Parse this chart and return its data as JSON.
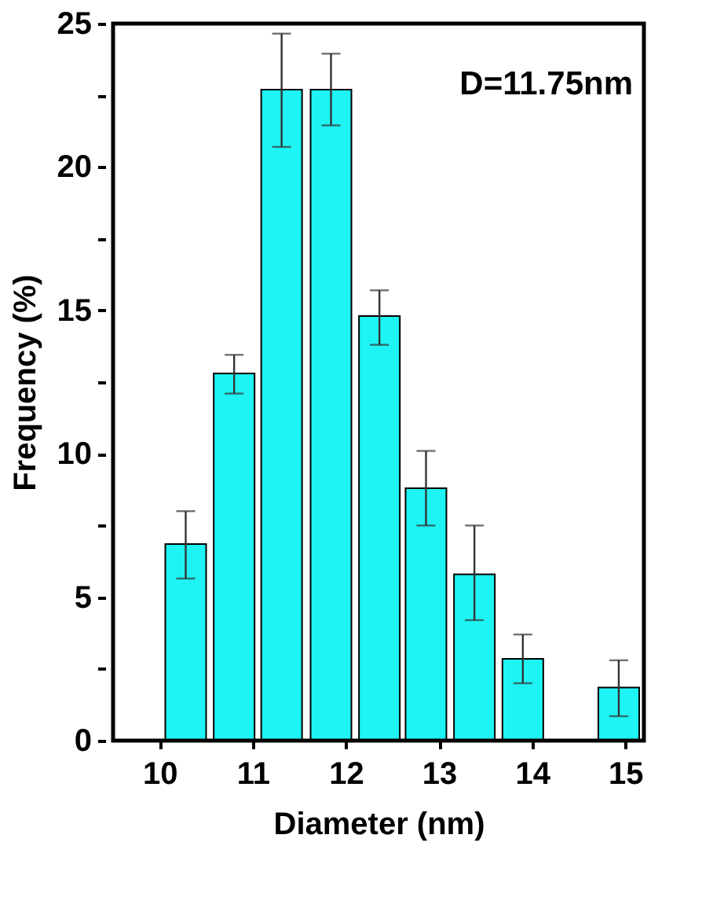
{
  "chart_data": {
    "type": "bar",
    "xlabel": "Diameter (nm)",
    "ylabel": "Frequency (%)",
    "annotations": [
      "D=11.75nm"
    ],
    "x": [
      10.28,
      10.8,
      11.31,
      11.84,
      12.36,
      12.86,
      13.38,
      13.9,
      14.93
    ],
    "values": [
      6.85,
      12.8,
      22.7,
      22.7,
      14.8,
      8.8,
      5.8,
      2.85,
      1.85
    ],
    "errors": [
      [
        5.65,
        8.0
      ],
      [
        12.1,
        13.45
      ],
      [
        20.7,
        24.65
      ],
      [
        21.45,
        23.95
      ],
      [
        13.8,
        15.7
      ],
      [
        7.5,
        10.1
      ],
      [
        4.2,
        7.5
      ],
      [
        2.0,
        3.7
      ],
      [
        0.85,
        2.8
      ]
    ],
    "color": "#1ef4f4",
    "xlim": [
      9.5,
      15.2
    ],
    "xticks": [
      10,
      11,
      12,
      13,
      14,
      15
    ],
    "ylim": [
      0,
      25
    ],
    "yticks": [
      0,
      {
        "value": 2.5,
        "label": null
      },
      5,
      {
        "value": 7.5,
        "label": null
      },
      10,
      {
        "value": 12.5,
        "label": null
      },
      15,
      {
        "value": 17.5,
        "label": null
      },
      20,
      {
        "value": 22.5,
        "label": null
      },
      25
    ],
    "grid": false
  }
}
